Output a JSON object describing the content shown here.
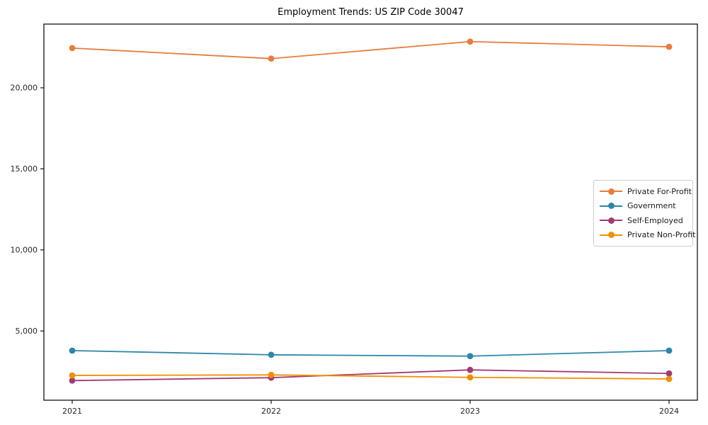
{
  "chart_data": {
    "type": "line",
    "title": "Employment Trends: US ZIP Code 30047",
    "xlabel": "",
    "ylabel": "",
    "categories": [
      "2021",
      "2022",
      "2023",
      "2024"
    ],
    "series": [
      {
        "name": "Private For-Profit",
        "color": "#e87d3c",
        "values": [
          22450,
          21800,
          22850,
          22530
        ]
      },
      {
        "name": "Government",
        "color": "#2e86ab",
        "values": [
          3790,
          3530,
          3450,
          3790
        ]
      },
      {
        "name": "Self-Employed",
        "color": "#a23b72",
        "values": [
          1940,
          2120,
          2600,
          2380
        ]
      },
      {
        "name": "Private Non-Profit",
        "color": "#f18f01",
        "values": [
          2260,
          2290,
          2140,
          2040
        ]
      }
    ],
    "y_ticks": [
      5000,
      10000,
      15000,
      20000
    ],
    "y_tick_labels": [
      "5,000",
      "10,000",
      "15,000",
      "20,000"
    ],
    "ylim": [
      730,
      23930
    ],
    "grid": false,
    "legend_position": "center-right",
    "frame_color": "#000000",
    "tick_label_color": "#262626"
  }
}
